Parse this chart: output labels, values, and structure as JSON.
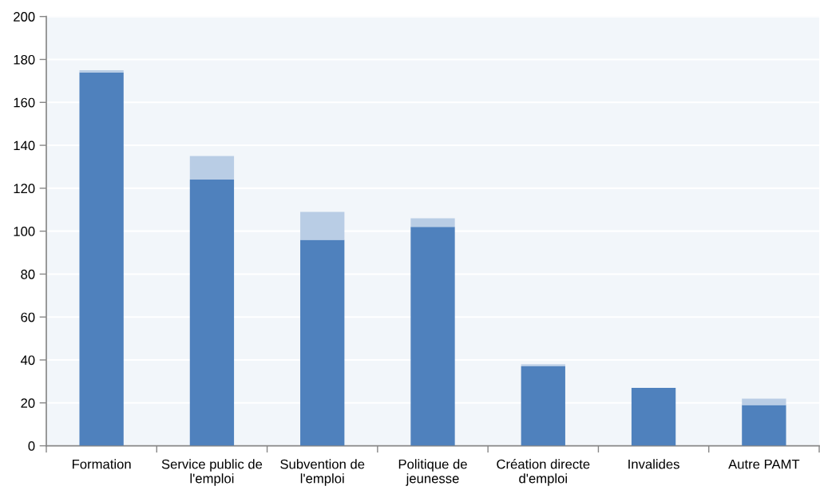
{
  "chart_data": {
    "type": "bar",
    "stacked": true,
    "categories": [
      "Formation",
      "Service public de\nl'emploi",
      "Subvention de\nl'emploi",
      "Politique de\njeunesse",
      "Création directe\nd'emploi",
      "Invalides",
      "Autre PAMT"
    ],
    "series": [
      {
        "color": "#4f81bd",
        "values": [
          174,
          124,
          96,
          102,
          37,
          27,
          19
        ]
      },
      {
        "color": "#b9cde5",
        "values": [
          1,
          11,
          13,
          4,
          1,
          null,
          3
        ]
      }
    ],
    "ylim": [
      0,
      200
    ],
    "yticks": [
      0,
      20,
      40,
      60,
      80,
      100,
      120,
      140,
      160,
      180,
      200
    ],
    "grid": "y"
  }
}
